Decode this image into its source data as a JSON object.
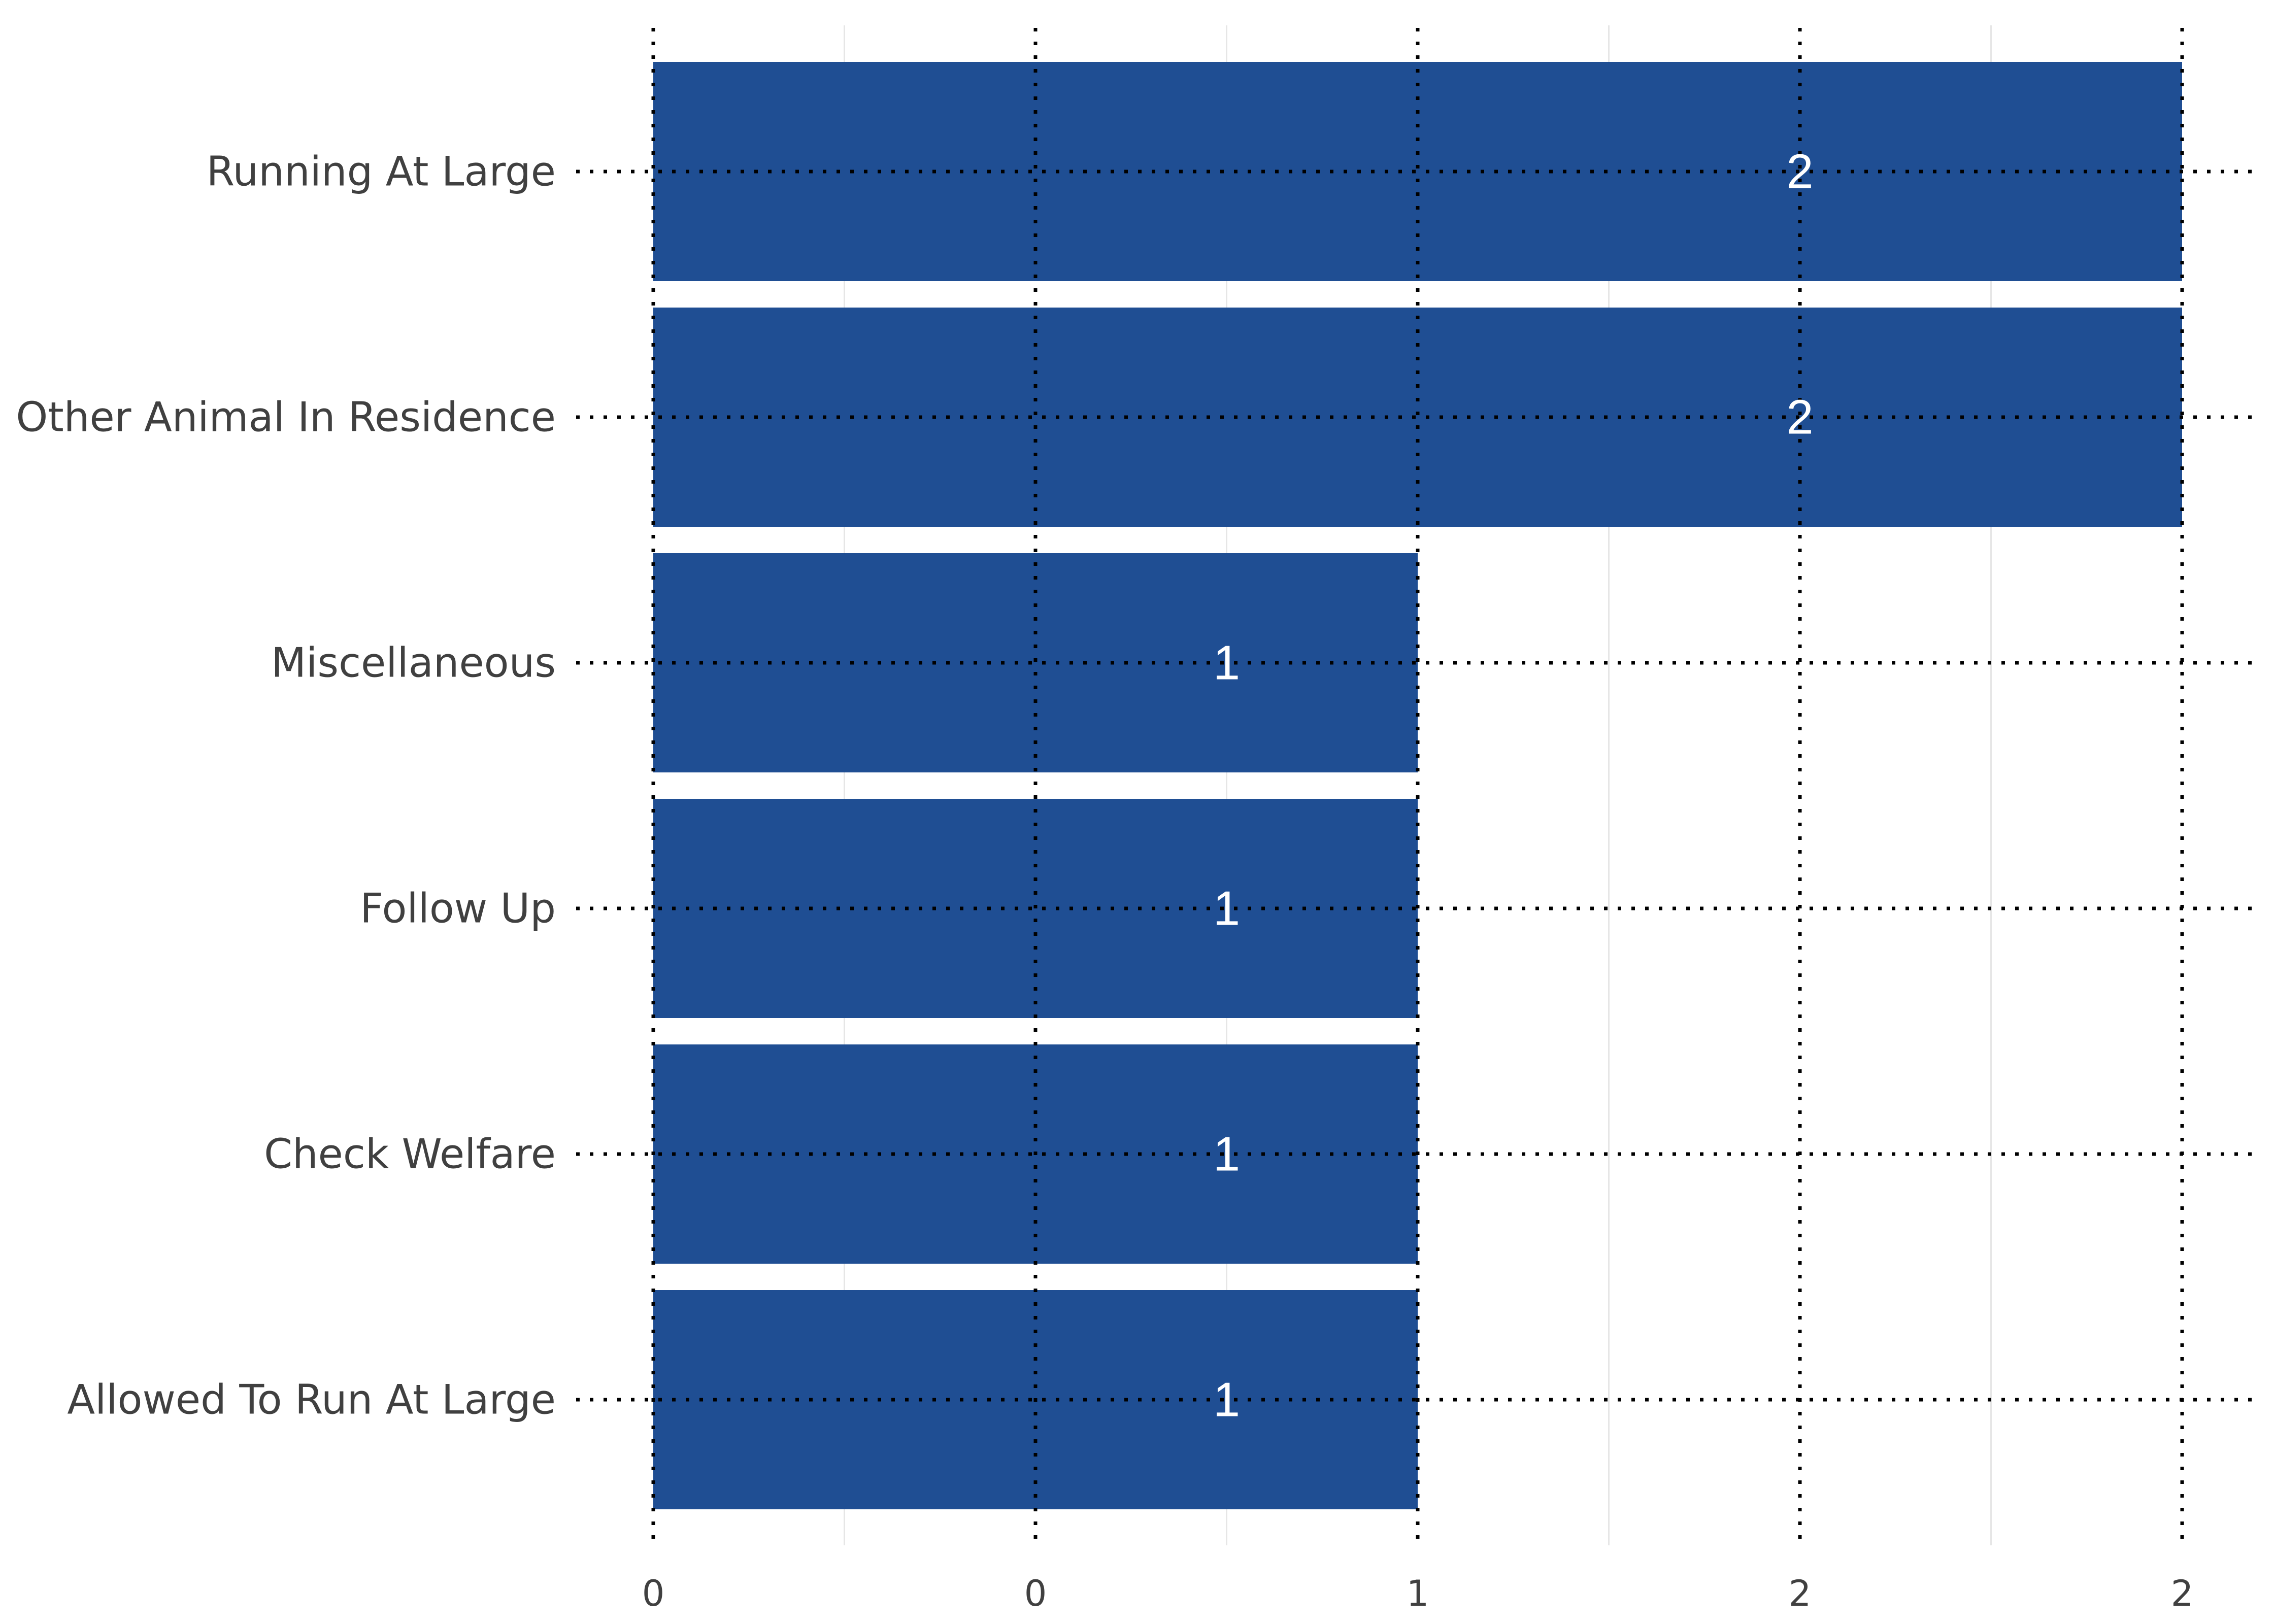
{
  "chart_data": {
    "type": "bar",
    "orientation": "horizontal",
    "categories": [
      "Running At Large",
      "Other Animal In Residence",
      "Miscellaneous",
      "Follow Up",
      "Check Welfare",
      "Allowed To Run At Large"
    ],
    "values": [
      2,
      2,
      1,
      1,
      1,
      1
    ],
    "data_labels": [
      "2",
      "2",
      "1",
      "1",
      "1",
      "1"
    ],
    "x_ticks": [
      0,
      0.5,
      1,
      1.5,
      2
    ],
    "x_tick_labels": [
      "0",
      "0",
      "1",
      "2",
      "2"
    ],
    "xlim": [
      0,
      2.1
    ],
    "grid": true,
    "colors": {
      "bar": "#1F4E93",
      "label": "#FFFFFF",
      "text": "#404040",
      "grid": "#E6E6E6",
      "dotted": "#000000"
    }
  }
}
